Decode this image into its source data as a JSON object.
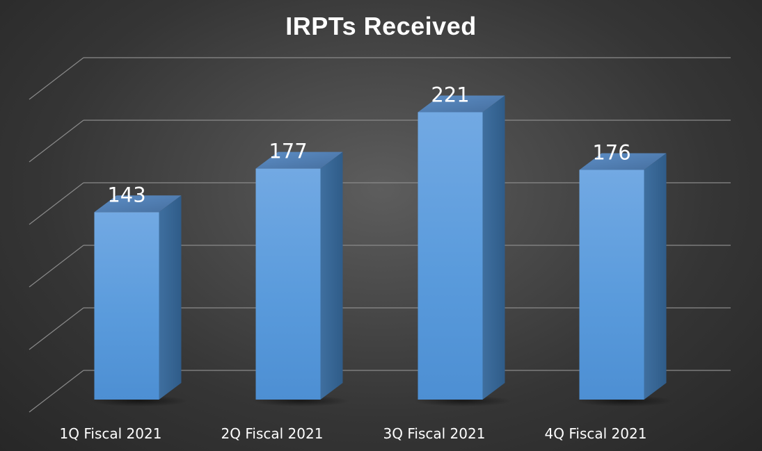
{
  "chart_data": {
    "type": "bar",
    "title": "IRPTs Received",
    "categories": [
      "1Q Fiscal 2021",
      "2Q Fiscal 2021",
      "3Q Fiscal 2021",
      "4Q Fiscal 2021"
    ],
    "series": [
      {
        "values": [
          143,
          177,
          221,
          176
        ]
      }
    ],
    "ylim": [
      0,
      250
    ],
    "xlabel": "",
    "ylabel": "",
    "grid": true,
    "legend": "none",
    "style": "3d-column",
    "colors": {
      "bar_front": "#5b9bd5",
      "bar_side": "#335f8b",
      "bar_top": "#5487bf",
      "grid": "#8a8a8a",
      "text": "#ffffff"
    }
  }
}
